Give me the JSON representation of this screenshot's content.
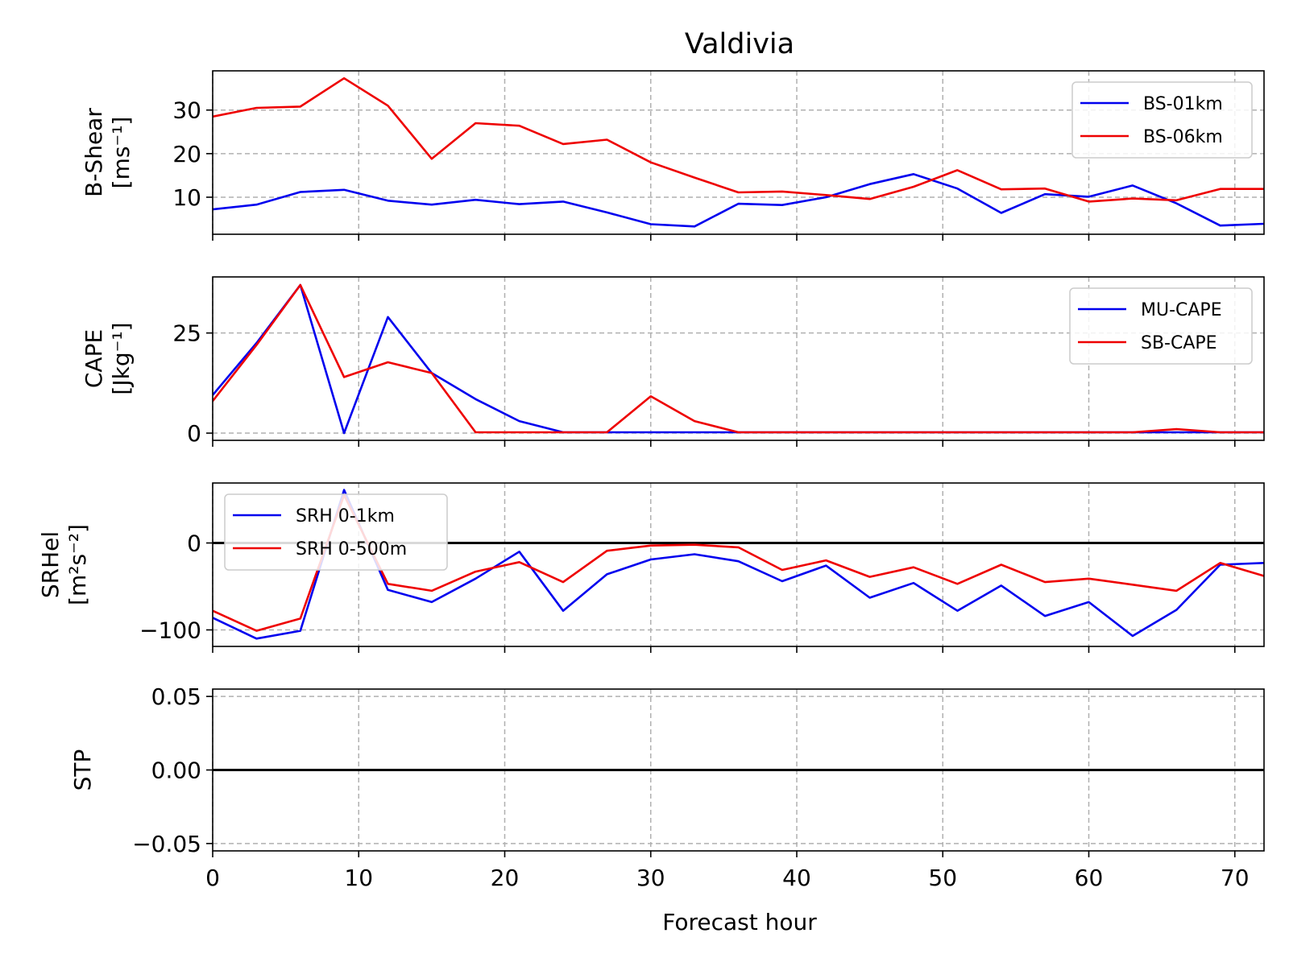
{
  "title": "Valdivia",
  "xlabel": "Forecast hour",
  "colors": {
    "blue": "#0000ee",
    "red": "#ee0000",
    "grid": "#b0b0b0",
    "zero_line": "#000000"
  },
  "chart_data": [
    {
      "type": "line",
      "title": "Valdivia",
      "ylabel_lines": [
        "B-Shear",
        "[ms⁻¹]"
      ],
      "xlim": [
        0,
        72
      ],
      "ylim": [
        1.5,
        39
      ],
      "yticks": [
        10,
        20,
        30
      ],
      "ytick_labels": [
        "10",
        "20",
        "30"
      ],
      "grid": true,
      "legend_position": "upper right",
      "x": [
        0,
        3,
        6,
        9,
        12,
        15,
        18,
        21,
        24,
        27,
        30,
        33,
        36,
        39,
        42,
        45,
        48,
        51,
        54,
        57,
        60,
        63,
        66,
        69,
        72
      ],
      "series": [
        {
          "name": "BS-01km",
          "color": "blue",
          "values": [
            7.2,
            8.3,
            11.2,
            11.7,
            9.2,
            8.3,
            9.4,
            8.4,
            9.0,
            6.5,
            3.8,
            3.3,
            8.5,
            8.2,
            10.0,
            13.0,
            15.3,
            12.0,
            6.4,
            10.7,
            10.1,
            12.7,
            8.6,
            3.5,
            3.9
          ]
        },
        {
          "name": "BS-06km",
          "color": "red",
          "values": [
            28.5,
            30.5,
            30.8,
            37.3,
            31.0,
            18.8,
            27.0,
            26.4,
            22.2,
            23.2,
            18.0,
            14.5,
            11.1,
            11.3,
            10.5,
            9.6,
            12.4,
            16.2,
            11.8,
            12.0,
            9.0,
            9.7,
            9.3,
            11.9,
            11.9
          ]
        }
      ]
    },
    {
      "type": "line",
      "ylabel_lines": [
        "CAPE",
        "[Jkg⁻¹]"
      ],
      "xlim": [
        0,
        72
      ],
      "ylim": [
        -1.8,
        39
      ],
      "yticks": [
        0,
        25
      ],
      "ytick_labels": [
        "0",
        "25"
      ],
      "grid": true,
      "legend_position": "upper right",
      "x": [
        0,
        3,
        6,
        9,
        12,
        15,
        18,
        21,
        24,
        27,
        30,
        33,
        36,
        39,
        42,
        45,
        48,
        51,
        54,
        57,
        60,
        63,
        66,
        69,
        72
      ],
      "series": [
        {
          "name": "MU-CAPE",
          "color": "blue",
          "values": [
            9.5,
            22.5,
            37.0,
            0,
            29.0,
            15.0,
            8.5,
            3.0,
            0.2,
            0.2,
            0.2,
            0.2,
            0.2,
            0.2,
            0.2,
            0.2,
            0.2,
            0.2,
            0.2,
            0.2,
            0.2,
            0.2,
            0.2,
            0.2,
            0.2
          ]
        },
        {
          "name": "SB-CAPE",
          "color": "red",
          "values": [
            8.0,
            22.0,
            37.0,
            14.0,
            17.7,
            15.0,
            0.2,
            0.2,
            0.2,
            0.2,
            9.2,
            3.0,
            0.2,
            0.2,
            0.2,
            0.2,
            0.2,
            0.2,
            0.2,
            0.2,
            0.2,
            0.2,
            1.0,
            0.2,
            0.2
          ]
        }
      ]
    },
    {
      "type": "line",
      "ylabel_lines": [
        "SRHel",
        "[m²s⁻²]"
      ],
      "xlim": [
        0,
        72
      ],
      "ylim": [
        -119,
        69
      ],
      "yticks": [
        -100,
        0
      ],
      "ytick_labels": [
        "−100",
        "0"
      ],
      "grid": true,
      "zero_line": true,
      "legend_position": "upper left",
      "x": [
        0,
        3,
        6,
        9,
        12,
        15,
        18,
        21,
        24,
        27,
        30,
        33,
        36,
        39,
        42,
        45,
        48,
        51,
        54,
        57,
        60,
        63,
        66,
        69,
        72
      ],
      "series": [
        {
          "name": "SRH 0-1km",
          "color": "blue",
          "values": [
            -86,
            -110,
            -101,
            61,
            -54,
            -68,
            -41,
            -10,
            -78,
            -36,
            -19,
            -13,
            -21,
            -44,
            -26,
            -63,
            -46,
            -78,
            -49,
            -84,
            -68,
            -107,
            -77,
            -25,
            -23
          ]
        },
        {
          "name": "SRH 0-500m",
          "color": "red",
          "values": [
            -78,
            -101,
            -87,
            55,
            -47,
            -55,
            -33,
            -22,
            -45,
            -9,
            -3,
            -2,
            -5,
            -31,
            -20,
            -39,
            -28,
            -47,
            -25,
            -45,
            -41,
            -48,
            -55,
            -23,
            -38
          ]
        }
      ]
    },
    {
      "type": "line",
      "ylabel_lines": [
        "STP"
      ],
      "xlim": [
        0,
        72
      ],
      "ylim": [
        -0.055,
        0.055
      ],
      "yticks": [
        -0.05,
        0.0,
        0.05
      ],
      "ytick_labels": [
        "−0.05",
        "0.00",
        "0.05"
      ],
      "grid": true,
      "zero_line": true,
      "series": []
    }
  ],
  "xticks": [
    0,
    10,
    20,
    30,
    40,
    50,
    60,
    70
  ],
  "xtick_labels": [
    "0",
    "10",
    "20",
    "30",
    "40",
    "50",
    "60",
    "70"
  ]
}
